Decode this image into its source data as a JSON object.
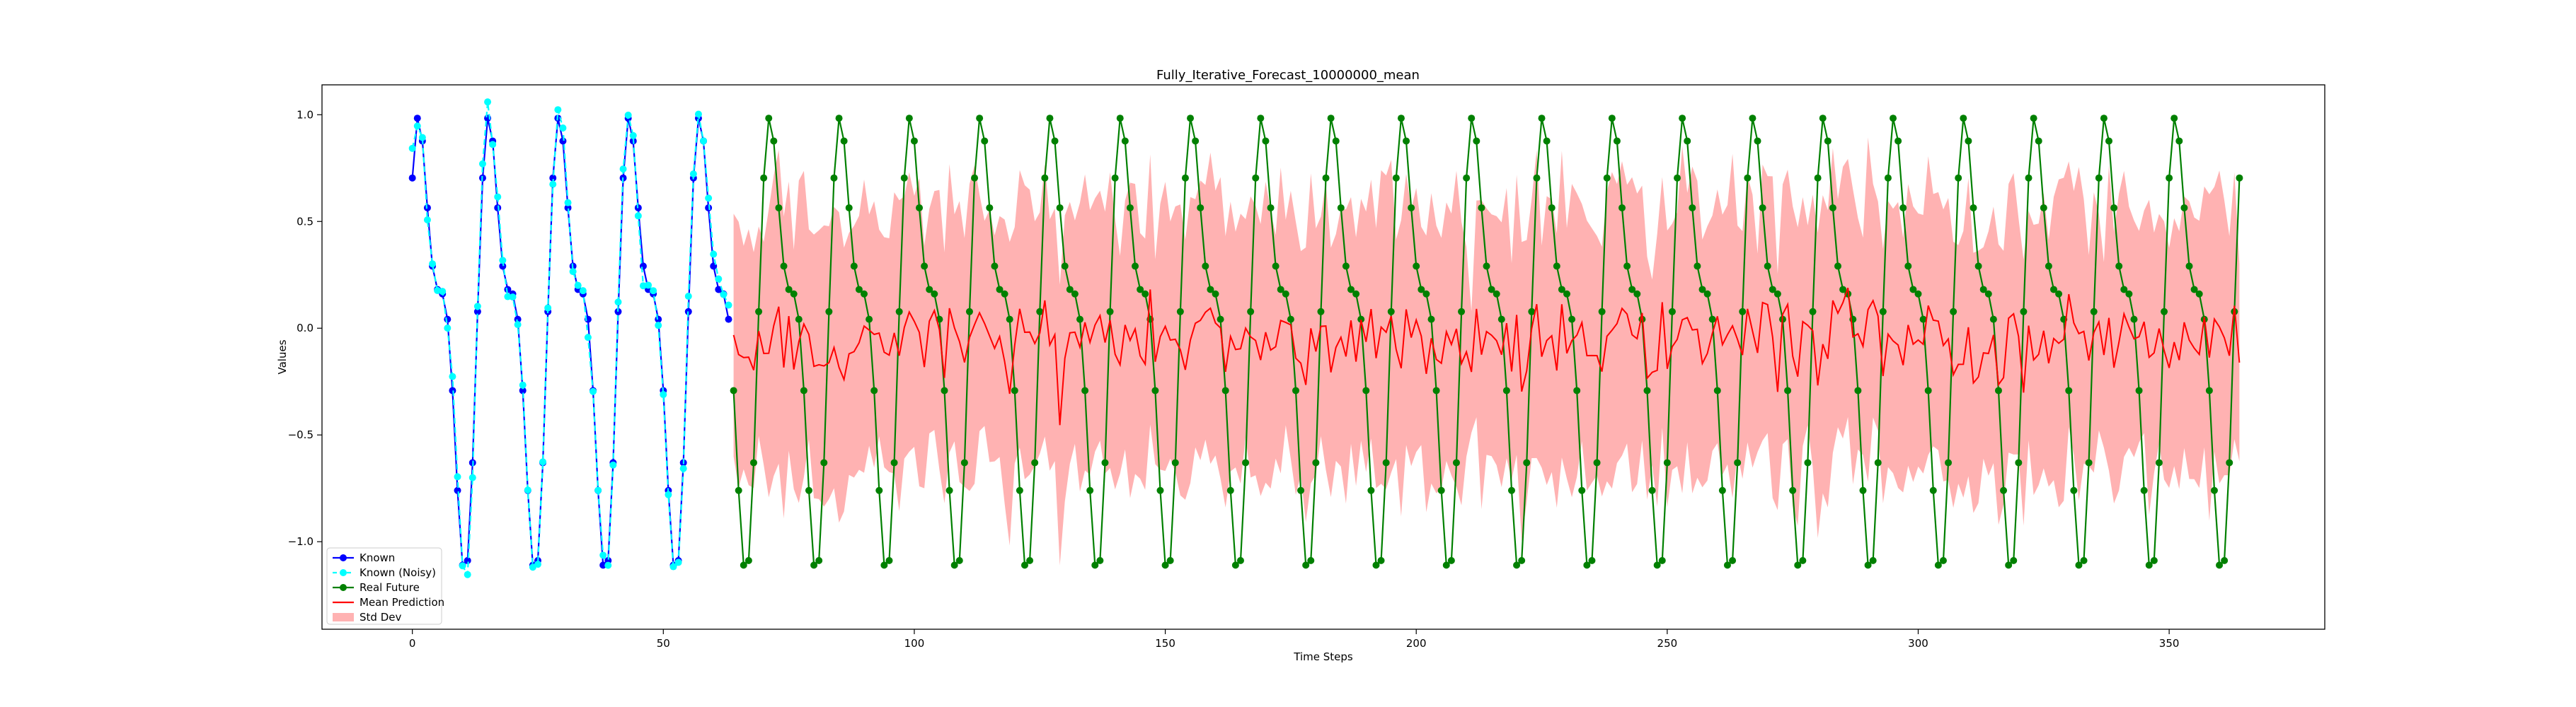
{
  "chart_data": {
    "type": "line",
    "title": "Fully_Iterative_Forecast_10000000_mean",
    "xlabel": "Time Steps",
    "ylabel": "Values",
    "xlim": [
      -18,
      381
    ],
    "ylim": [
      -1.41,
      1.14
    ],
    "xticks": [
      0,
      50,
      100,
      150,
      200,
      250,
      300,
      350
    ],
    "yticks": [
      -1.0,
      -0.5,
      0.0,
      0.5,
      1.0
    ],
    "ytick_labels": [
      "−1.0",
      "−0.5",
      "0.0",
      "0.5",
      "1.0"
    ],
    "grid": false,
    "legend_position": "lower-left",
    "signal": {
      "base": 0.0,
      "amp_a": 0.85,
      "period_a": 14,
      "amp_b": 0.4,
      "period_b": 7
    },
    "noise_std": 0.05,
    "forecast_start": 64,
    "forecast_end": 364,
    "std_band_halfwidth": 0.62,
    "series": [
      {
        "name": "Known",
        "color": "#0000ff",
        "x_start": 0,
        "x_end": 63,
        "marker": "circle",
        "line": "solid"
      },
      {
        "name": "Known (Noisy)",
        "color": "#00ffff",
        "x_start": 0,
        "x_end": 63,
        "marker": "circle",
        "line": "dashed"
      },
      {
        "name": "Real Future",
        "color": "#008000",
        "x_start": 64,
        "x_end": 364,
        "marker": "circle",
        "line": "solid"
      },
      {
        "name": "Mean Prediction",
        "color": "#ff0000",
        "x_start": 64,
        "x_end": 364,
        "marker": "none",
        "line": "solid"
      },
      {
        "name": "Std Dev",
        "color": "#ff0000",
        "fill_opacity": 0.3,
        "x_start": 64,
        "x_end": 364,
        "type": "band"
      }
    ]
  }
}
